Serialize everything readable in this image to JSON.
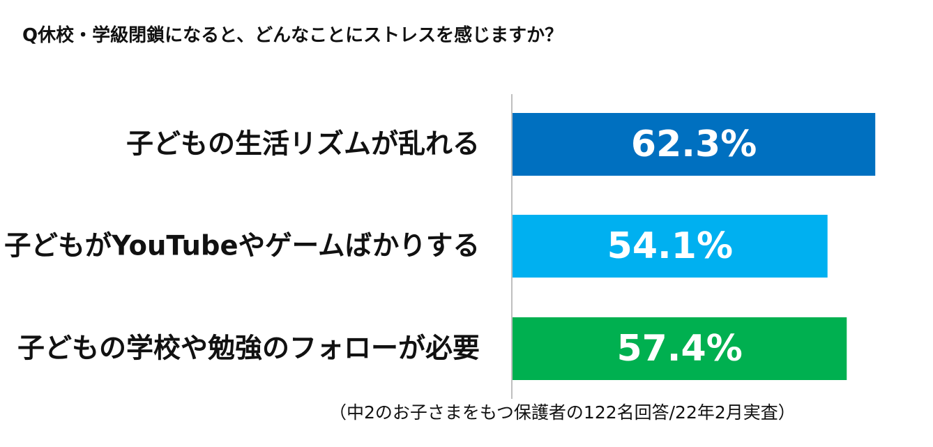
{
  "title": "Q休校・学級閉鎖になると、どんなことにストレスを感じますか？",
  "note": "（中2のお子さまをもつ保護者の122名回答/22年2月実査）",
  "chart_data": {
    "type": "bar",
    "orientation": "horizontal",
    "title": "Q休校・学級閉鎖になると、どんなことにストレスを感じますか？",
    "categories": [
      "子どもの生活リズムが乱れる",
      "子どもがYouTubeやゲームばかりする",
      "子どもの学校や勉強のフォローが必要"
    ],
    "values": [
      62.3,
      54.1,
      57.4
    ],
    "value_labels": [
      "62.3%",
      "54.1%",
      "57.4%"
    ],
    "colors": [
      "#0070c0",
      "#00b0f0",
      "#00b050"
    ],
    "xlim": [
      0,
      65
    ],
    "grid": false,
    "legend": "none"
  }
}
